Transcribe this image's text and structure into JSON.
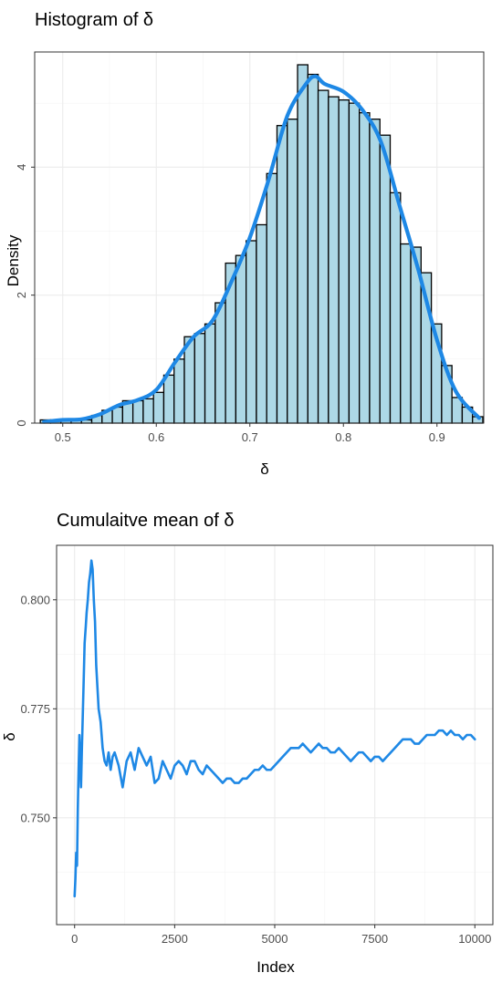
{
  "chart_data": [
    {
      "type": "bar",
      "title": "Histogram of δ",
      "xlabel": "δ",
      "ylabel": "Density",
      "xlim": [
        0.47,
        0.95
      ],
      "ylim": [
        0,
        5.8
      ],
      "x_ticks": [
        0.5,
        0.6,
        0.7,
        0.8,
        0.9
      ],
      "x_tick_labels": [
        "0.5",
        "0.6",
        "0.7",
        "0.8",
        "0.9"
      ],
      "y_ticks": [
        0,
        2,
        4
      ],
      "y_tick_labels": [
        "0",
        "2",
        "4"
      ],
      "grid": true,
      "bar_fill": "#add8e6",
      "bar_edge": "#000000",
      "density_color": "#1e88e5",
      "bin_edges": [
        0.476,
        0.487,
        0.498,
        0.509,
        0.52,
        0.531,
        0.542,
        0.553,
        0.564,
        0.575,
        0.586,
        0.597,
        0.608,
        0.619,
        0.63,
        0.641,
        0.652,
        0.663,
        0.674,
        0.685,
        0.696,
        0.707,
        0.718,
        0.729,
        0.74,
        0.751,
        0.762,
        0.773,
        0.784,
        0.795,
        0.806,
        0.817,
        0.828,
        0.839,
        0.85,
        0.861,
        0.872,
        0.883,
        0.894,
        0.905,
        0.916,
        0.927,
        0.938,
        0.949
      ],
      "values": [
        0.05,
        0.05,
        0.05,
        0.05,
        0.05,
        0.12,
        0.2,
        0.25,
        0.35,
        0.35,
        0.38,
        0.48,
        0.75,
        1.0,
        1.35,
        1.4,
        1.55,
        1.88,
        2.5,
        2.62,
        2.85,
        3.1,
        3.9,
        4.65,
        4.75,
        5.6,
        5.45,
        5.2,
        5.1,
        5.05,
        5.0,
        4.85,
        4.75,
        4.5,
        3.6,
        2.8,
        2.75,
        2.35,
        1.55,
        0.9,
        0.4,
        0.25,
        0.1
      ],
      "density_x": [
        0.48,
        0.5,
        0.52,
        0.54,
        0.56,
        0.58,
        0.6,
        0.62,
        0.64,
        0.66,
        0.68,
        0.7,
        0.72,
        0.74,
        0.76,
        0.77,
        0.78,
        0.8,
        0.82,
        0.84,
        0.86,
        0.88,
        0.9,
        0.92,
        0.945
      ],
      "density_y": [
        0.02,
        0.05,
        0.06,
        0.14,
        0.28,
        0.36,
        0.52,
        0.95,
        1.35,
        1.6,
        2.2,
        2.9,
        3.8,
        4.8,
        5.3,
        5.42,
        5.3,
        5.18,
        4.9,
        4.4,
        3.4,
        2.4,
        1.3,
        0.5,
        0.08
      ]
    },
    {
      "type": "line",
      "title": "Cumulaitve mean of δ",
      "xlabel": "Index",
      "ylabel": "δ",
      "xlim": [
        -450,
        10450
      ],
      "ylim": [
        0.7255,
        0.8125
      ],
      "x_ticks": [
        0,
        2500,
        5000,
        7500,
        10000
      ],
      "x_tick_labels": [
        "0",
        "2500",
        "5000",
        "7500",
        "10000"
      ],
      "y_ticks": [
        0.75,
        0.775,
        0.8
      ],
      "y_tick_labels": [
        "0.750",
        "0.775",
        "0.800"
      ],
      "grid": true,
      "line_color": "#1e88e5",
      "x": [
        0,
        20,
        40,
        60,
        80,
        100,
        120,
        140,
        160,
        180,
        200,
        220,
        250,
        280,
        300,
        330,
        360,
        390,
        420,
        450,
        480,
        510,
        540,
        570,
        600,
        650,
        700,
        750,
        800,
        850,
        900,
        950,
        1000,
        1100,
        1200,
        1300,
        1400,
        1500,
        1600,
        1700,
        1800,
        1900,
        2000,
        2100,
        2200,
        2300,
        2400,
        2500,
        2600,
        2700,
        2800,
        2900,
        3000,
        3100,
        3200,
        3300,
        3400,
        3500,
        3600,
        3700,
        3800,
        3900,
        4000,
        4100,
        4200,
        4300,
        4400,
        4500,
        4600,
        4700,
        4800,
        4900,
        5000,
        5100,
        5200,
        5300,
        5400,
        5500,
        5600,
        5700,
        5800,
        5900,
        6000,
        6100,
        6200,
        6300,
        6400,
        6500,
        6600,
        6700,
        6800,
        6900,
        7000,
        7100,
        7200,
        7300,
        7400,
        7500,
        7600,
        7700,
        7800,
        7900,
        8000,
        8100,
        8200,
        8300,
        8400,
        8500,
        8600,
        8700,
        8800,
        8900,
        9000,
        9100,
        9200,
        9300,
        9400,
        9500,
        9600,
        9700,
        9800,
        9900,
        10000
      ],
      "y": [
        0.732,
        0.736,
        0.742,
        0.739,
        0.752,
        0.761,
        0.769,
        0.764,
        0.757,
        0.765,
        0.772,
        0.779,
        0.79,
        0.794,
        0.797,
        0.8,
        0.804,
        0.806,
        0.809,
        0.807,
        0.8,
        0.795,
        0.785,
        0.78,
        0.775,
        0.772,
        0.766,
        0.763,
        0.762,
        0.765,
        0.761,
        0.764,
        0.765,
        0.762,
        0.757,
        0.763,
        0.765,
        0.761,
        0.766,
        0.764,
        0.762,
        0.764,
        0.758,
        0.759,
        0.763,
        0.761,
        0.759,
        0.762,
        0.763,
        0.762,
        0.76,
        0.763,
        0.763,
        0.761,
        0.76,
        0.762,
        0.761,
        0.76,
        0.759,
        0.758,
        0.759,
        0.759,
        0.758,
        0.758,
        0.759,
        0.759,
        0.76,
        0.761,
        0.761,
        0.762,
        0.761,
        0.761,
        0.762,
        0.763,
        0.764,
        0.765,
        0.766,
        0.766,
        0.766,
        0.767,
        0.766,
        0.765,
        0.766,
        0.767,
        0.766,
        0.766,
        0.765,
        0.765,
        0.766,
        0.765,
        0.764,
        0.763,
        0.764,
        0.765,
        0.765,
        0.764,
        0.763,
        0.764,
        0.764,
        0.763,
        0.764,
        0.765,
        0.766,
        0.767,
        0.768,
        0.768,
        0.768,
        0.767,
        0.767,
        0.768,
        0.769,
        0.769,
        0.769,
        0.77,
        0.77,
        0.769,
        0.77,
        0.769,
        0.769,
        0.768,
        0.769,
        0.769,
        0.768
      ]
    }
  ]
}
